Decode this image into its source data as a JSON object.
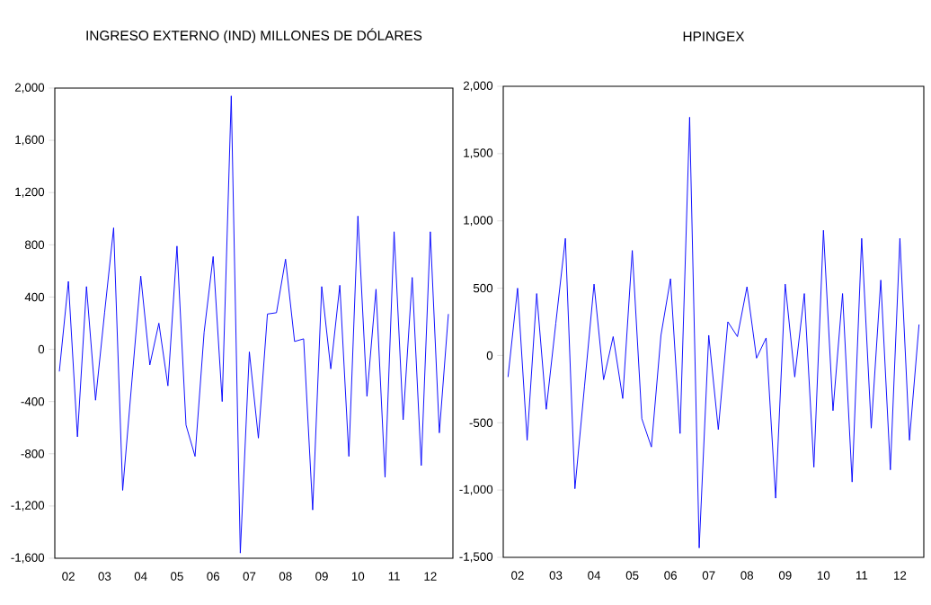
{
  "chart_data": [
    {
      "type": "line",
      "title": "INGRESO EXTERNO (IND) MILLONES DE DÓLARES",
      "categories": [
        null,
        "02",
        null,
        null,
        null,
        "03",
        null,
        null,
        null,
        "04",
        null,
        null,
        null,
        "05",
        null,
        null,
        null,
        "06",
        null,
        null,
        null,
        "07",
        null,
        null,
        null,
        "08",
        null,
        null,
        null,
        "09",
        null,
        null,
        null,
        "10",
        null,
        null,
        null,
        "11",
        null,
        null,
        null,
        "12",
        null,
        null
      ],
      "series": [
        {
          "color": "#0000ff",
          "values": [
            -170,
            520,
            -670,
            480,
            -390,
            280,
            930,
            -1080,
            -260,
            560,
            -120,
            200,
            -280,
            790,
            -580,
            -820,
            130,
            710,
            -400,
            1940,
            -1560,
            -20,
            -680,
            270,
            280,
            690,
            60,
            80,
            -1230,
            480,
            -150,
            490,
            -820,
            1020,
            -360,
            460,
            -980,
            900,
            -540,
            550,
            -890,
            900,
            -640,
            270
          ]
        }
      ],
      "ylim": [
        -1600,
        2000
      ],
      "yticks": [
        {
          "value": -1600,
          "label": "-1,600"
        },
        {
          "value": -1200,
          "label": "-1,200"
        },
        -800,
        -400,
        0,
        400,
        800,
        {
          "value": 1200,
          "label": "1,200"
        },
        {
          "value": 1600,
          "label": "1,600"
        },
        {
          "value": 2000,
          "label": "2,000"
        }
      ]
    },
    {
      "type": "line",
      "title": "HPINGEX",
      "categories": [
        null,
        "02",
        null,
        null,
        null,
        "03",
        null,
        null,
        null,
        "04",
        null,
        null,
        null,
        "05",
        null,
        null,
        null,
        "06",
        null,
        null,
        null,
        "07",
        null,
        null,
        null,
        "08",
        null,
        null,
        null,
        "09",
        null,
        null,
        null,
        "10",
        null,
        null,
        null,
        "11",
        null,
        null,
        null,
        "12",
        null,
        null
      ],
      "series": [
        {
          "color": "#0000ff",
          "values": [
            -160,
            500,
            -630,
            460,
            -400,
            240,
            870,
            -990,
            -230,
            530,
            -180,
            140,
            -320,
            780,
            -470,
            -680,
            150,
            570,
            -580,
            1770,
            -1430,
            150,
            -550,
            250,
            140,
            510,
            -20,
            130,
            -1060,
            530,
            -160,
            460,
            -830,
            930,
            -410,
            460,
            -940,
            870,
            -540,
            560,
            -850,
            870,
            -630,
            230
          ]
        }
      ],
      "ylim": [
        -1500,
        2000
      ],
      "yticks": [
        {
          "value": -1500,
          "label": "-1,500"
        },
        {
          "value": -1000,
          "label": "-1,000"
        },
        -500,
        0,
        500,
        {
          "value": 1000,
          "label": "1,000"
        },
        {
          "value": 1500,
          "label": "1,500"
        },
        {
          "value": 2000,
          "label": "2,000"
        }
      ]
    }
  ]
}
